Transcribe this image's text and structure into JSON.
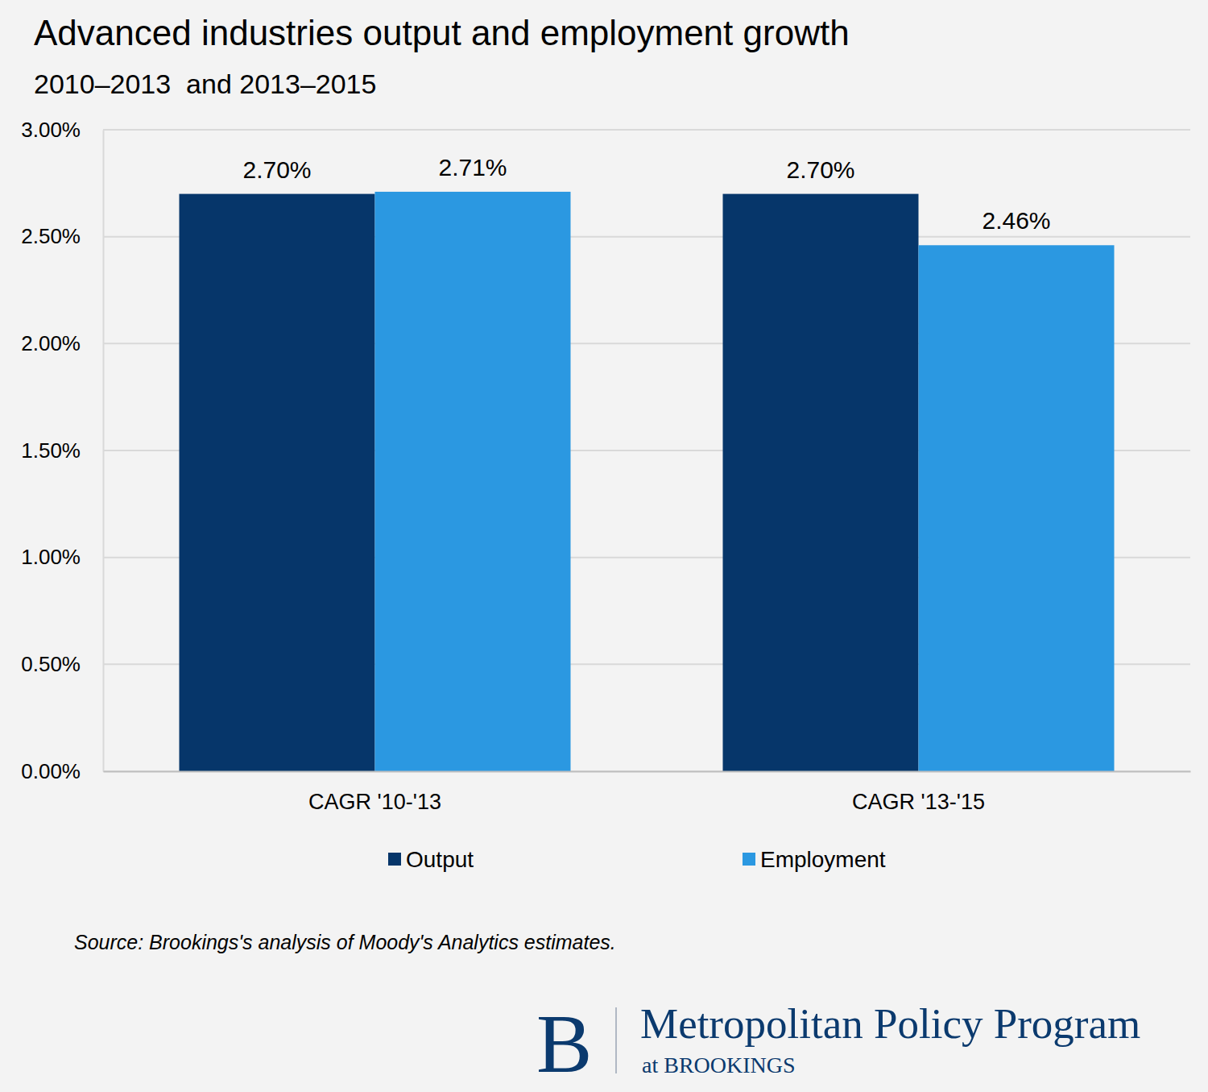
{
  "chart_data": {
    "type": "bar",
    "title": "Advanced industries output and employment growth",
    "subtitle": "2010–2013  and 2013–2015",
    "categories": [
      "CAGR '10-'13",
      "CAGR '13-'15"
    ],
    "series": [
      {
        "name": "Output",
        "color": "#06366a",
        "values": [
          2.7,
          2.7
        ],
        "value_labels": [
          "2.70%",
          "2.70%"
        ]
      },
      {
        "name": "Employment",
        "color": "#2b98e1",
        "values": [
          2.71,
          2.46
        ],
        "value_labels": [
          "2.71%",
          "2.46%"
        ]
      }
    ],
    "ylim": [
      0,
      3
    ],
    "yticks": [
      {
        "value": 0,
        "label": "0.00%"
      },
      {
        "value": 0.5,
        "label": "0.50%"
      },
      {
        "value": 1,
        "label": "1.00%"
      },
      {
        "value": 1.5,
        "label": "1.50%"
      },
      {
        "value": 2,
        "label": "2.00%"
      },
      {
        "value": 2.5,
        "label": "2.50%"
      },
      {
        "value": 3,
        "label": "3.00%"
      }
    ],
    "grid": true,
    "data_labels": true,
    "legend": "bottom",
    "source": "Source: Brookings's analysis of Moody's Analytics estimates.",
    "logo": {
      "letter": "B",
      "name": "Metropolitan Policy Program",
      "sub": "at BROOKINGS"
    }
  }
}
